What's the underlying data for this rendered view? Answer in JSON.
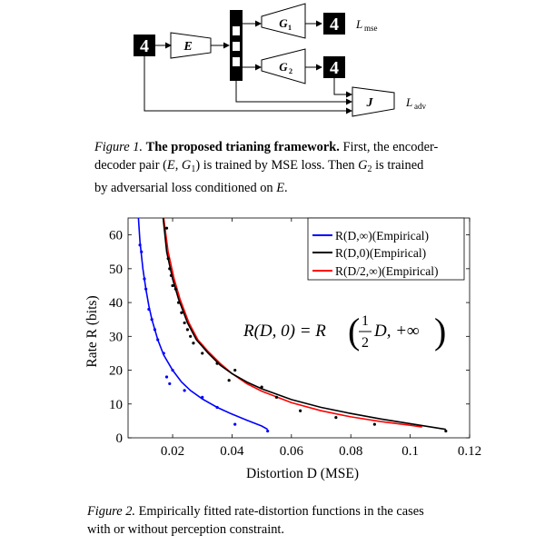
{
  "figure1": {
    "labels": {
      "encoder": "E",
      "generator1": "G",
      "generator1_sub": "1",
      "generator2": "G",
      "generator2_sub": "2",
      "discriminator": "J",
      "loss_mse": "L",
      "loss_mse_sub": "mse",
      "loss_adv": "L",
      "loss_adv_sub": "adv"
    },
    "caption": {
      "lead": "Figure 1.",
      "title": "The proposed trianing framework.",
      "t1": "First, the encoder-",
      "t2": "decoder pair (",
      "E": "E",
      "comma": ", ",
      "G": "G",
      "G_sub": "1",
      "t3": ") is trained by MSE loss. Then ",
      "G2": "G",
      "G2_sub": "2",
      "t4": " is trained",
      "t5": "by adversarial loss conditioned on ",
      "E2": "E",
      "t6": "."
    }
  },
  "figure2": {
    "caption": {
      "lead": "Figure 2.",
      "line1": "Empirically fitted rate-distortion functions in the cases",
      "line2": "with or without perception constraint."
    },
    "annotation": {
      "lhs": "R(D, 0) = R",
      "frac_num": "1",
      "frac_den": "2",
      "rhs": "D, +∞"
    }
  },
  "chart_data": {
    "type": "line",
    "xlabel": "Distortion D (MSE)",
    "ylabel": "Rate R (bits)",
    "xlim": [
      0.005,
      0.12
    ],
    "ylim": [
      0,
      65
    ],
    "xticks": [
      0.02,
      0.04,
      0.06,
      0.08,
      0.1,
      0.12
    ],
    "xtick_labels": [
      "0.02",
      "0.04",
      "0.06",
      "0.08",
      "0.1",
      "0.12"
    ],
    "yticks": [
      0,
      10,
      20,
      30,
      40,
      50,
      60
    ],
    "ytick_labels": [
      "0",
      "10",
      "20",
      "30",
      "40",
      "50",
      "60"
    ],
    "grid": false,
    "legend_position": "top-right",
    "series": [
      {
        "name": "R(D,∞)(Empirical)",
        "color": "#0000ff",
        "line": [
          [
            0.0085,
            65
          ],
          [
            0.009,
            58
          ],
          [
            0.01,
            50
          ],
          [
            0.011,
            44
          ],
          [
            0.012,
            39
          ],
          [
            0.013,
            35
          ],
          [
            0.015,
            29
          ],
          [
            0.017,
            24.5
          ],
          [
            0.02,
            20
          ],
          [
            0.023,
            16.5
          ],
          [
            0.026,
            14
          ],
          [
            0.03,
            11.5
          ],
          [
            0.035,
            9
          ],
          [
            0.04,
            7
          ],
          [
            0.045,
            5.2
          ],
          [
            0.05,
            3.5
          ],
          [
            0.052,
            2.5
          ]
        ],
        "points": [
          [
            0.009,
            57
          ],
          [
            0.0095,
            55
          ],
          [
            0.0105,
            47
          ],
          [
            0.011,
            44
          ],
          [
            0.012,
            38
          ],
          [
            0.013,
            35
          ],
          [
            0.014,
            32
          ],
          [
            0.015,
            29
          ],
          [
            0.017,
            25
          ],
          [
            0.018,
            18
          ],
          [
            0.019,
            16
          ],
          [
            0.02,
            20
          ],
          [
            0.024,
            14
          ],
          [
            0.03,
            12
          ],
          [
            0.035,
            9
          ],
          [
            0.041,
            4
          ],
          [
            0.052,
            2
          ]
        ]
      },
      {
        "name": "R(D,0)(Empirical)",
        "color": "#000000",
        "line": [
          [
            0.0168,
            65
          ],
          [
            0.018,
            55
          ],
          [
            0.02,
            47
          ],
          [
            0.022,
            41
          ],
          [
            0.025,
            34
          ],
          [
            0.028,
            29
          ],
          [
            0.032,
            25
          ],
          [
            0.036,
            21.5
          ],
          [
            0.04,
            19
          ],
          [
            0.045,
            16.5
          ],
          [
            0.05,
            14.5
          ],
          [
            0.06,
            11.3
          ],
          [
            0.07,
            9
          ],
          [
            0.08,
            7.2
          ],
          [
            0.09,
            5.6
          ],
          [
            0.1,
            4.2
          ],
          [
            0.112,
            2.5
          ]
        ],
        "points": [
          [
            0.018,
            62
          ],
          [
            0.0185,
            53
          ],
          [
            0.019,
            50
          ],
          [
            0.0195,
            48
          ],
          [
            0.02,
            45
          ],
          [
            0.021,
            44
          ],
          [
            0.022,
            40
          ],
          [
            0.023,
            37
          ],
          [
            0.024,
            34
          ],
          [
            0.025,
            32
          ],
          [
            0.026,
            30
          ],
          [
            0.027,
            28
          ],
          [
            0.03,
            25
          ],
          [
            0.035,
            22
          ],
          [
            0.039,
            17
          ],
          [
            0.041,
            20
          ],
          [
            0.05,
            15
          ],
          [
            0.055,
            12
          ],
          [
            0.063,
            8
          ],
          [
            0.075,
            6
          ],
          [
            0.088,
            4
          ],
          [
            0.112,
            2
          ]
        ]
      },
      {
        "name": "R(D/2,∞)(Empirical)",
        "color": "#ff0000",
        "line": [
          [
            0.017,
            65
          ],
          [
            0.0185,
            55
          ],
          [
            0.0205,
            47
          ],
          [
            0.0225,
            41
          ],
          [
            0.0255,
            34
          ],
          [
            0.0285,
            29
          ],
          [
            0.032,
            25.5
          ],
          [
            0.036,
            22
          ],
          [
            0.04,
            19
          ],
          [
            0.045,
            16
          ],
          [
            0.05,
            13.8
          ],
          [
            0.06,
            10.4
          ],
          [
            0.07,
            8
          ],
          [
            0.08,
            6.2
          ],
          [
            0.09,
            4.8
          ],
          [
            0.1,
            3.7
          ],
          [
            0.104,
            3.2
          ]
        ]
      }
    ]
  }
}
